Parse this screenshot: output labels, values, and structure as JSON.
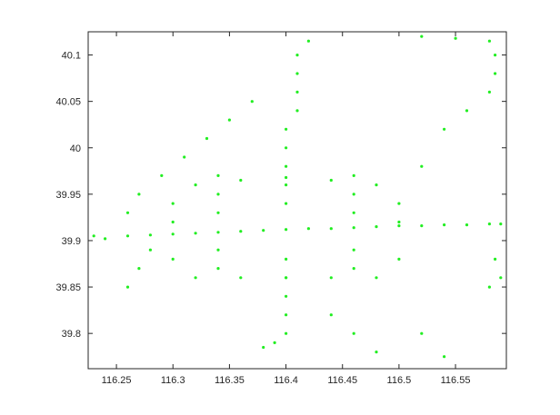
{
  "chart_data": {
    "type": "scatter",
    "title": "",
    "xlabel": "",
    "ylabel": "",
    "xlim": [
      116.225,
      116.595
    ],
    "ylim": [
      39.762,
      40.125
    ],
    "xticks": [
      116.25,
      116.3,
      116.35,
      116.4,
      116.45,
      116.5,
      116.55
    ],
    "xtick_labels": [
      "116.25",
      "116.3",
      "116.35",
      "116.4",
      "116.45",
      "116.5",
      "116.55"
    ],
    "yticks": [
      39.8,
      39.85,
      39.9,
      39.95,
      40.0,
      40.05,
      40.1
    ],
    "ytick_labels": [
      "39.8",
      "39.85",
      "39.9",
      "39.95",
      "40",
      "40.05",
      "40.1"
    ],
    "grid": false,
    "colors": {
      "points": "#22ee22",
      "dense_points": "#0a3a0a",
      "axis": "#262626",
      "background": "#ffffff"
    },
    "series": [
      {
        "color": "#22ee22",
        "description_note": "",
        "points": [
          [
            116.23,
            39.905
          ],
          [
            116.24,
            39.902
          ],
          [
            116.26,
            39.905
          ],
          [
            116.28,
            39.906
          ],
          [
            116.3,
            39.907
          ],
          [
            116.32,
            39.908
          ],
          [
            116.34,
            39.909
          ],
          [
            116.36,
            39.91
          ],
          [
            116.38,
            39.911
          ],
          [
            116.4,
            39.912
          ],
          [
            116.42,
            39.913
          ],
          [
            116.44,
            39.913
          ],
          [
            116.46,
            39.914
          ],
          [
            116.48,
            39.915
          ],
          [
            116.5,
            39.916
          ],
          [
            116.52,
            39.916
          ],
          [
            116.54,
            39.917
          ],
          [
            116.56,
            39.917
          ],
          [
            116.58,
            39.918
          ],
          [
            116.59,
            39.918
          ],
          [
            116.4,
            39.8
          ],
          [
            116.4,
            39.82
          ],
          [
            116.4,
            39.84
          ],
          [
            116.4,
            39.86
          ],
          [
            116.4,
            39.88
          ],
          [
            116.4,
            39.94
          ],
          [
            116.4,
            39.96
          ],
          [
            116.4,
            39.98
          ],
          [
            116.4,
            40.0
          ],
          [
            116.4,
            40.02
          ],
          [
            116.41,
            40.04
          ],
          [
            116.41,
            40.06
          ],
          [
            116.41,
            40.08
          ],
          [
            116.41,
            40.1
          ],
          [
            116.42,
            40.115
          ],
          [
            116.34,
            39.87
          ],
          [
            116.34,
            39.89
          ],
          [
            116.34,
            39.93
          ],
          [
            116.34,
            39.95
          ],
          [
            116.34,
            39.97
          ],
          [
            116.46,
            39.87
          ],
          [
            116.46,
            39.89
          ],
          [
            116.46,
            39.93
          ],
          [
            116.46,
            39.95
          ],
          [
            116.46,
            39.97
          ],
          [
            116.32,
            39.86
          ],
          [
            116.36,
            39.86
          ],
          [
            116.4,
            39.86
          ],
          [
            116.44,
            39.86
          ],
          [
            116.48,
            39.86
          ],
          [
            116.32,
            39.96
          ],
          [
            116.36,
            39.965
          ],
          [
            116.4,
            39.968
          ],
          [
            116.44,
            39.965
          ],
          [
            116.48,
            39.96
          ],
          [
            116.3,
            39.88
          ],
          [
            116.3,
            39.92
          ],
          [
            116.3,
            39.94
          ],
          [
            116.5,
            39.88
          ],
          [
            116.5,
            39.92
          ],
          [
            116.5,
            39.94
          ],
          [
            116.52,
            39.98
          ],
          [
            116.54,
            40.02
          ],
          [
            116.56,
            40.04
          ],
          [
            116.58,
            40.06
          ],
          [
            116.585,
            40.08
          ],
          [
            116.585,
            40.1
          ],
          [
            116.58,
            40.115
          ],
          [
            116.55,
            40.118
          ],
          [
            116.52,
            40.12
          ],
          [
            116.26,
            39.85
          ],
          [
            116.27,
            39.87
          ],
          [
            116.28,
            39.89
          ],
          [
            116.26,
            39.93
          ],
          [
            116.27,
            39.95
          ],
          [
            116.29,
            39.97
          ],
          [
            116.31,
            39.99
          ],
          [
            116.33,
            40.01
          ],
          [
            116.35,
            40.03
          ],
          [
            116.37,
            40.05
          ],
          [
            116.44,
            39.82
          ],
          [
            116.46,
            39.8
          ],
          [
            116.48,
            39.78
          ],
          [
            116.52,
            39.8
          ],
          [
            116.54,
            39.775
          ],
          [
            116.58,
            39.85
          ],
          [
            116.59,
            39.86
          ],
          [
            116.585,
            39.88
          ],
          [
            116.39,
            39.79
          ],
          [
            116.38,
            39.785
          ]
        ]
      }
    ]
  }
}
